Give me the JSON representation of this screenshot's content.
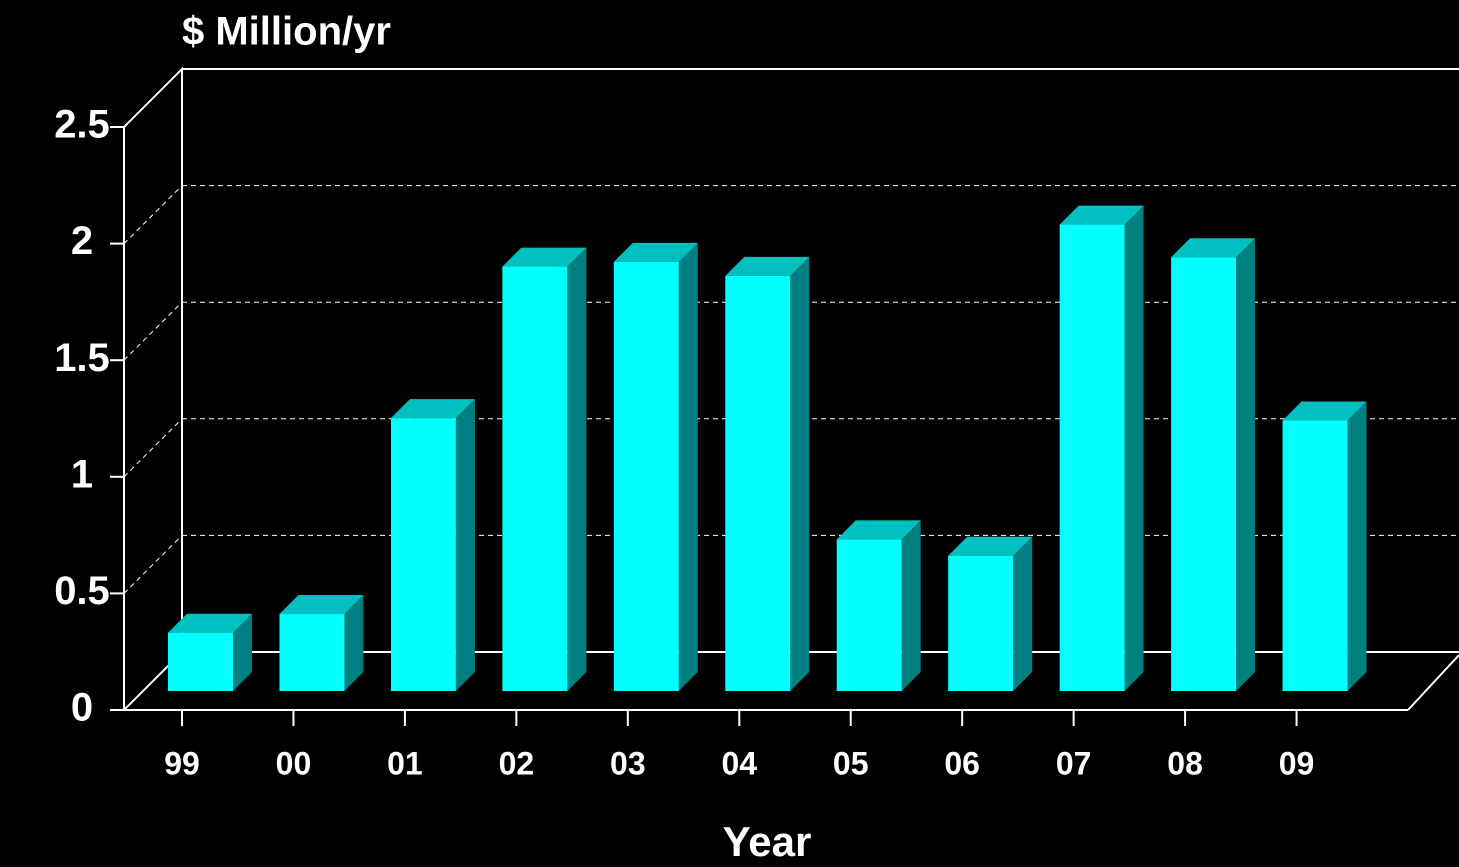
{
  "chart_data": {
    "type": "bar3d",
    "title": "$ Million/yr",
    "x_label": "Year",
    "categories": [
      "99",
      "00",
      "01",
      "02",
      "03",
      "04",
      "05",
      "06",
      "07",
      "08",
      "09"
    ],
    "values": [
      0.25,
      0.33,
      1.17,
      1.82,
      1.84,
      1.78,
      0.65,
      0.58,
      2.0,
      1.86,
      1.16
    ],
    "color": "#00ffff",
    "ylim": [
      0,
      2.5
    ],
    "yticks": [
      0,
      0.5,
      1,
      1.5,
      2,
      2.5
    ],
    "grid": true
  }
}
